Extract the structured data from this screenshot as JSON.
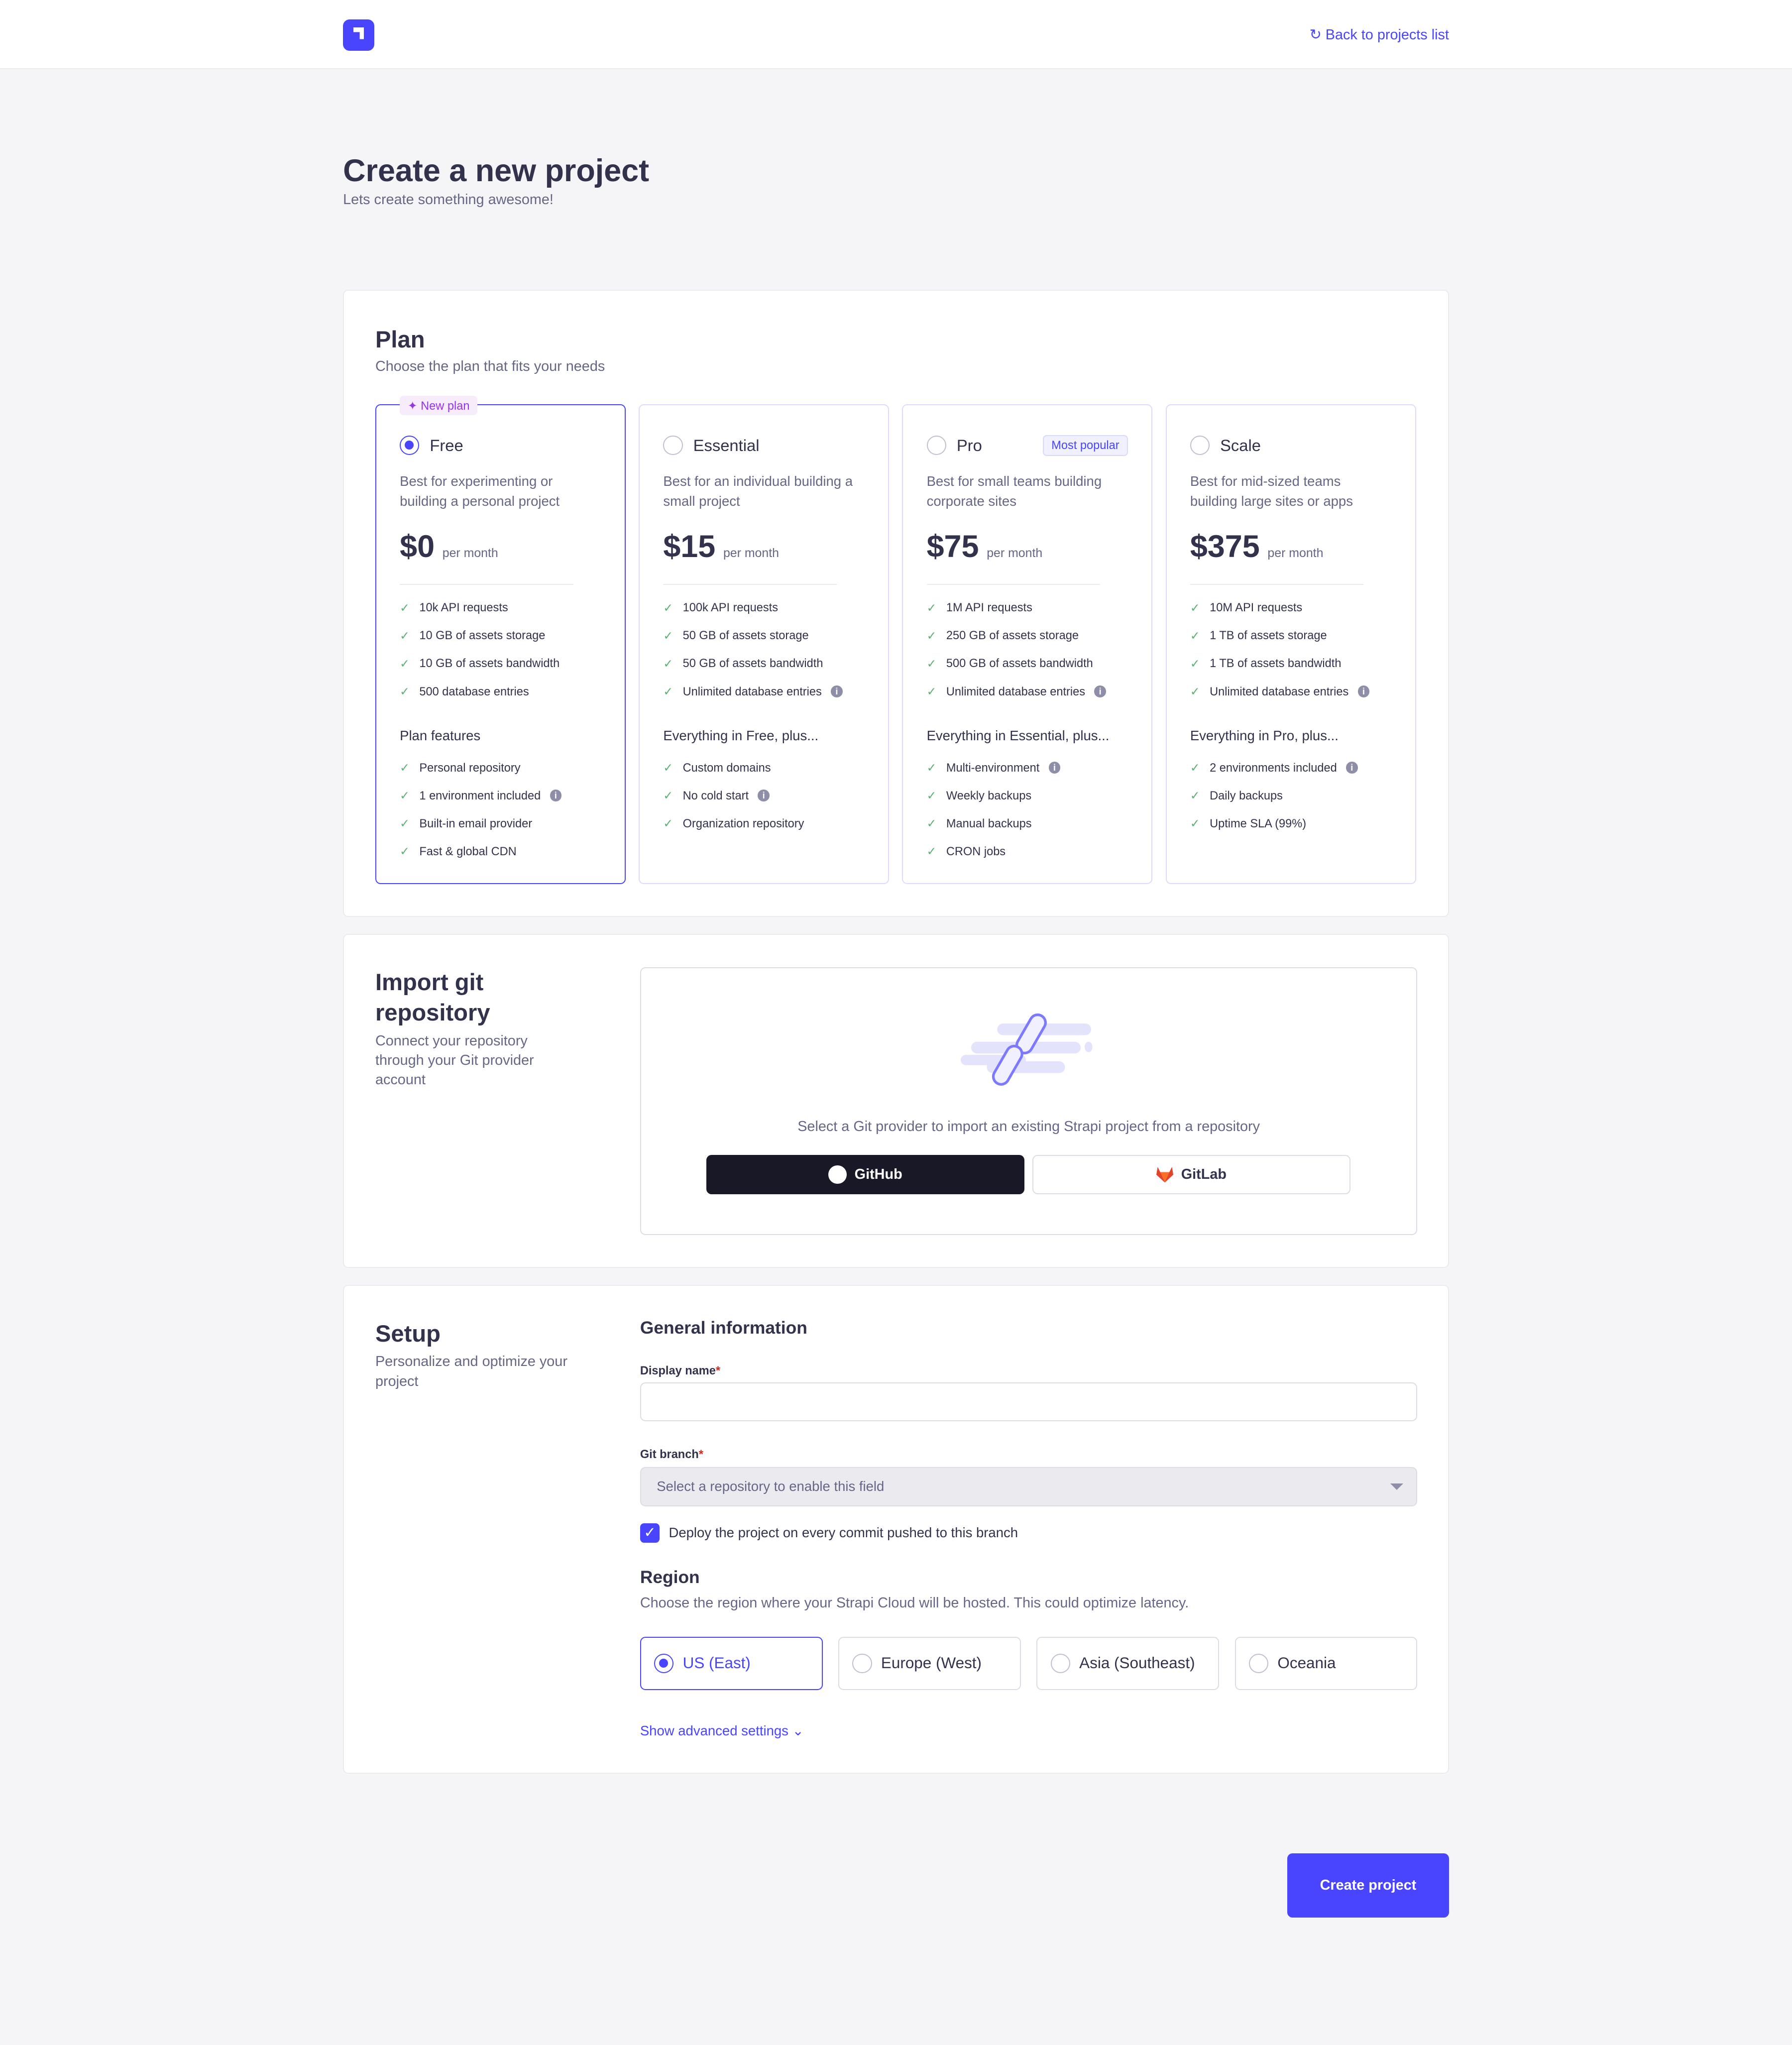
{
  "header": {
    "back_link": "Back to projects list",
    "back_icon": "refresh-arrow-icon"
  },
  "page": {
    "title": "Create a new project",
    "subtitle": "Lets create something awesome!"
  },
  "plan": {
    "title": "Plan",
    "subtitle": "Choose the plan that fits your needs",
    "new_badge": "New plan",
    "popular_badge": "Most popular",
    "per": "per month",
    "plans": [
      {
        "name": "Free",
        "selected": true,
        "desc": "Best for experimenting or building a personal project",
        "price": "$0",
        "limits": [
          "10k API requests",
          "10 GB of assets storage",
          "10 GB of assets bandwidth",
          "500 database entries"
        ],
        "features_title": "Plan features",
        "features": [
          "Personal repository",
          "1 environment included",
          "Built-in email provider",
          "Fast & global CDN"
        ]
      },
      {
        "name": "Essential",
        "selected": false,
        "desc": "Best for an individual building a small project",
        "price": "$15",
        "limits": [
          "100k API requests",
          "50 GB of assets storage",
          "50 GB of assets bandwidth",
          "Unlimited database entries"
        ],
        "features_title": "Everything in Free, plus...",
        "features": [
          "Custom domains",
          "No cold start",
          "Organization repository"
        ]
      },
      {
        "name": "Pro",
        "selected": false,
        "desc": "Best for small teams building corporate sites",
        "price": "$75",
        "limits": [
          "1M API requests",
          "250 GB of assets storage",
          "500 GB of assets bandwidth",
          "Unlimited database entries"
        ],
        "features_title": "Everything in Essential, plus...",
        "features": [
          "Multi-environment",
          "Weekly backups",
          "Manual backups",
          "CRON jobs"
        ]
      },
      {
        "name": "Scale",
        "selected": false,
        "desc": "Best for mid-sized teams building large sites or apps",
        "price": "$375",
        "limits": [
          "10M API requests",
          "1 TB of assets storage",
          "1 TB of assets bandwidth",
          "Unlimited database entries"
        ],
        "features_title": "Everything in Pro, plus...",
        "features": [
          "2 environments included",
          "Daily backups",
          "Uptime SLA (99%)"
        ]
      }
    ]
  },
  "import": {
    "title": "Import git repository",
    "subtitle": "Connect your repository through your Git provider account",
    "prompt": "Select a Git provider to import an existing Strapi project from a repository",
    "github": "GitHub",
    "gitlab": "GitLab"
  },
  "setup": {
    "title": "Setup",
    "subtitle": "Personalize and optimize your project",
    "general": "General information",
    "display_name_label": "Display name",
    "display_name_value": "",
    "git_branch_label": "Git branch",
    "git_branch_placeholder": "Select a repository to enable this field",
    "deploy_label": "Deploy the project on every commit pushed to this branch",
    "deploy_checked": true,
    "region_title": "Region",
    "region_subtitle": "Choose the region where your Strapi Cloud will be hosted. This could optimize latency.",
    "regions": [
      {
        "name": "US (East)",
        "selected": true
      },
      {
        "name": "Europe (West)",
        "selected": false
      },
      {
        "name": "Asia (Southeast)",
        "selected": false
      },
      {
        "name": "Oceania",
        "selected": false
      }
    ],
    "advanced": "Show advanced settings"
  },
  "footer": {
    "create": "Create project"
  },
  "colors": {
    "primary": "#4945ff",
    "text": "#32324d",
    "muted": "#666687",
    "github_bg": "#181826"
  }
}
